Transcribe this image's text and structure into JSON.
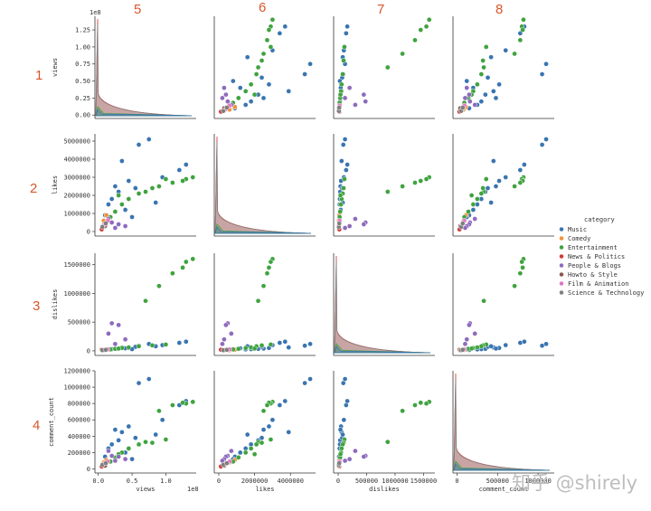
{
  "annotations": {
    "col_numbers": [
      "5",
      "6",
      "7",
      "8"
    ],
    "row_numbers": [
      "1",
      "2",
      "3",
      "4"
    ]
  },
  "watermark": "知乎 @shirely",
  "chart_data": {
    "type": "scatter",
    "layout": "pairplot",
    "variables": [
      "views",
      "likes",
      "dislikes",
      "comment_count"
    ],
    "diagonal": "kde",
    "legend": {
      "title": "category",
      "placement": "right",
      "entries": [
        {
          "name": "Music",
          "color": "#3a75b0"
        },
        {
          "name": "Comedy",
          "color": "#f2913c"
        },
        {
          "name": "Entertainment",
          "color": "#3fa33f"
        },
        {
          "name": "News & Politics",
          "color": "#d33a36"
        },
        {
          "name": "People & Blogs",
          "color": "#8e6bbd"
        },
        {
          "name": "Howto & Style",
          "color": "#8c564b"
        },
        {
          "name": "Film & Animation",
          "color": "#e377c2"
        },
        {
          "name": "Science & Technology",
          "color": "#7f7f7f"
        }
      ]
    },
    "axes": {
      "views": {
        "label": "views",
        "range": [
          -5000000,
          145000000
        ],
        "ticks": [
          0,
          25000000,
          50000000,
          75000000,
          100000000,
          125000000
        ],
        "tick_labels_y": [
          "0.00",
          "0.25",
          "0.50",
          "0.75",
          "1.00",
          "1.25"
        ],
        "ticks_x": [
          0,
          50000000,
          100000000
        ],
        "tick_labels_x": [
          "0.0",
          "0.5",
          "1.0"
        ],
        "offset_text": "1e8"
      },
      "likes": {
        "label": "likes",
        "range": [
          -250000,
          5400000
        ],
        "ticks_y": [
          0,
          1000000,
          2000000,
          3000000,
          4000000,
          5000000
        ],
        "tick_labels_y": [
          "0",
          "1000000",
          "2000000",
          "3000000",
          "4000000",
          "5000000"
        ],
        "ticks_x": [
          0,
          2000000,
          4000000
        ],
        "tick_labels_x": [
          "0",
          "2000000",
          "4000000"
        ]
      },
      "dislikes": {
        "label": "dislikes",
        "range": [
          -80000,
          1700000
        ],
        "ticks_y": [
          0,
          500000,
          1000000,
          1500000
        ],
        "tick_labels_y": [
          "0",
          "500000",
          "1000000",
          "1500000"
        ],
        "ticks_x": [
          0,
          500000,
          1000000,
          1500000
        ],
        "tick_labels_x": [
          "0",
          "500000",
          "1000000",
          "1500000"
        ]
      },
      "comment_count": {
        "label": "comment_count",
        "range": [
          -50000,
          1200000
        ],
        "ticks_y": [
          0,
          200000,
          400000,
          600000,
          800000,
          1000000,
          1200000
        ],
        "tick_labels_y": [
          "0",
          "200000",
          "400000",
          "600000",
          "800000",
          "1000000",
          "1200000"
        ],
        "ticks_x": [
          0,
          500000,
          1000000
        ],
        "tick_labels_x": [
          "0",
          "500000",
          "1000000"
        ]
      }
    },
    "points": [
      {
        "category": "Music",
        "views": 60000000,
        "likes": 4800000,
        "dislikes": 90000,
        "comment_count": 1050000
      },
      {
        "category": "Music",
        "views": 75000000,
        "likes": 5100000,
        "dislikes": 120000,
        "comment_count": 1100000
      },
      {
        "category": "Music",
        "views": 120000000,
        "likes": 3400000,
        "dislikes": 140000,
        "comment_count": 780000
      },
      {
        "category": "Music",
        "views": 130000000,
        "likes": 3700000,
        "dislikes": 160000,
        "comment_count": 830000
      },
      {
        "category": "Music",
        "views": 95000000,
        "likes": 3000000,
        "dislikes": 100000,
        "comment_count": 600000
      },
      {
        "category": "Music",
        "views": 35000000,
        "likes": 3900000,
        "dislikes": 60000,
        "comment_count": 450000
      },
      {
        "category": "Music",
        "views": 45000000,
        "likes": 2800000,
        "dislikes": 50000,
        "comment_count": 520000
      },
      {
        "category": "Music",
        "views": 25000000,
        "likes": 2500000,
        "dislikes": 40000,
        "comment_count": 480000
      },
      {
        "category": "Music",
        "views": 30000000,
        "likes": 2200000,
        "dislikes": 35000,
        "comment_count": 350000
      },
      {
        "category": "Music",
        "views": 20000000,
        "likes": 1800000,
        "dislikes": 30000,
        "comment_count": 300000
      },
      {
        "category": "Music",
        "views": 15000000,
        "likes": 1500000,
        "dislikes": 25000,
        "comment_count": 250000
      },
      {
        "category": "Music",
        "views": 40000000,
        "likes": 1200000,
        "dislikes": 45000,
        "comment_count": 200000
      },
      {
        "category": "Music",
        "views": 55000000,
        "likes": 2400000,
        "dislikes": 70000,
        "comment_count": 380000
      },
      {
        "category": "Music",
        "views": 10000000,
        "likes": 900000,
        "dislikes": 15000,
        "comment_count": 150000
      },
      {
        "category": "Music",
        "views": 50000000,
        "likes": 800000,
        "dislikes": 30000,
        "comment_count": 120000
      },
      {
        "category": "Music",
        "views": 85000000,
        "likes": 1600000,
        "dislikes": 80000,
        "comment_count": 420000
      },
      {
        "category": "Comedy",
        "views": 8000000,
        "likes": 600000,
        "dislikes": 10000,
        "comment_count": 80000
      },
      {
        "category": "Comedy",
        "views": 12000000,
        "likes": 900000,
        "dislikes": 20000,
        "comment_count": 110000
      },
      {
        "category": "Entertainment",
        "views": 140000000,
        "likes": 3000000,
        "dislikes": 1600000,
        "comment_count": 820000
      },
      {
        "category": "Entertainment",
        "views": 130000000,
        "likes": 2900000,
        "dislikes": 1550000,
        "comment_count": 800000
      },
      {
        "category": "Entertainment",
        "views": 125000000,
        "likes": 2800000,
        "dislikes": 1450000,
        "comment_count": 810000
      },
      {
        "category": "Entertainment",
        "views": 110000000,
        "likes": 2700000,
        "dislikes": 1350000,
        "comment_count": 780000
      },
      {
        "category": "Entertainment",
        "views": 90000000,
        "likes": 2500000,
        "dislikes": 1130000,
        "comment_count": 710000
      },
      {
        "category": "Entertainment",
        "views": 70000000,
        "likes": 2200000,
        "dislikes": 870000,
        "comment_count": 330000
      },
      {
        "category": "Entertainment",
        "views": 100000000,
        "likes": 2900000,
        "dislikes": 110000,
        "comment_count": 360000
      },
      {
        "category": "Entertainment",
        "views": 80000000,
        "likes": 2400000,
        "dislikes": 95000,
        "comment_count": 320000
      },
      {
        "category": "Entertainment",
        "views": 60000000,
        "likes": 2100000,
        "dislikes": 80000,
        "comment_count": 300000
      },
      {
        "category": "Entertainment",
        "views": 45000000,
        "likes": 1800000,
        "dislikes": 60000,
        "comment_count": 250000
      },
      {
        "category": "Entertainment",
        "views": 35000000,
        "likes": 1500000,
        "dislikes": 50000,
        "comment_count": 200000
      },
      {
        "category": "Entertainment",
        "views": 25000000,
        "likes": 1100000,
        "dislikes": 35000,
        "comment_count": 140000
      },
      {
        "category": "Entertainment",
        "views": 18000000,
        "likes": 800000,
        "dislikes": 25000,
        "comment_count": 90000
      },
      {
        "category": "Entertainment",
        "views": 30000000,
        "likes": 2000000,
        "dislikes": 40000,
        "comment_count": 180000
      },
      {
        "category": "News & Politics",
        "views": 5000000,
        "likes": 120000,
        "dislikes": 20000,
        "comment_count": 30000
      },
      {
        "category": "People & Blogs",
        "views": 20000000,
        "likes": 500000,
        "dislikes": 480000,
        "comment_count": 160000
      },
      {
        "category": "People & Blogs",
        "views": 30000000,
        "likes": 400000,
        "dislikes": 450000,
        "comment_count": 150000
      },
      {
        "category": "People & Blogs",
        "views": 15000000,
        "likes": 700000,
        "dislikes": 300000,
        "comment_count": 220000
      },
      {
        "category": "People & Blogs",
        "views": 40000000,
        "likes": 300000,
        "dislikes": 200000,
        "comment_count": 120000
      },
      {
        "category": "People & Blogs",
        "views": 25000000,
        "likes": 200000,
        "dislikes": 120000,
        "comment_count": 100000
      },
      {
        "category": "Howto & Style",
        "views": 10000000,
        "likes": 300000,
        "dislikes": 10000,
        "comment_count": 40000
      },
      {
        "category": "Film & Animation",
        "views": 8000000,
        "likes": 350000,
        "dislikes": 15000,
        "comment_count": 60000
      },
      {
        "category": "Film & Animation",
        "views": 14000000,
        "likes": 600000,
        "dislikes": 25000,
        "comment_count": 90000
      },
      {
        "category": "Science & Technology",
        "views": 6000000,
        "likes": 250000,
        "dislikes": 12000,
        "comment_count": 50000
      },
      {
        "category": "Science & Technology",
        "views": 11000000,
        "likes": 450000,
        "dislikes": 18000,
        "comment_count": 70000
      }
    ]
  }
}
